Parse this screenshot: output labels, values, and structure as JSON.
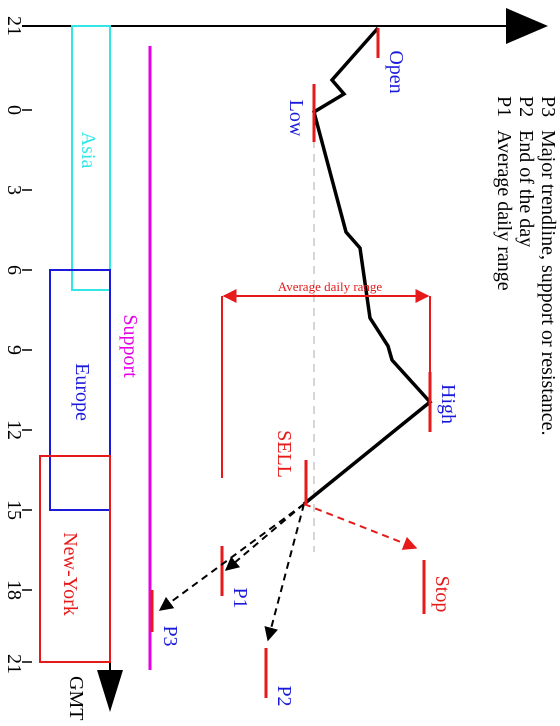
{
  "axis": {
    "time_ticks": [
      "21",
      "0",
      "3",
      "6",
      "9",
      "12",
      "15",
      "18",
      "21"
    ],
    "unit": "GMT"
  },
  "sessions": [
    {
      "name": "Asia",
      "color": "#33e6e6"
    },
    {
      "name": "Europe",
      "color": "#1a1adb"
    },
    {
      "name": "New-York",
      "color": "#e61a1a"
    }
  ],
  "support": {
    "label": "Support",
    "color": "#e600e6"
  },
  "price_points": {
    "open": "Open",
    "low": "Low",
    "high": "High",
    "sell": "SELL",
    "stop": "Stop",
    "p1": "P1",
    "p2": "P2",
    "p3": "P3"
  },
  "range_label": "Average daily range",
  "legend": [
    {
      "key": "P1",
      "text": "Average daily range"
    },
    {
      "key": "P2",
      "text": "End of the day"
    },
    {
      "key": "P3",
      "text": "Major trendline, support or resistance."
    }
  ],
  "colors": {
    "price": "#000000",
    "marker": "#e61a1a",
    "label_blue": "#1a1adb",
    "label_red": "#e61a1a",
    "guide": "#c8c8c8"
  }
}
